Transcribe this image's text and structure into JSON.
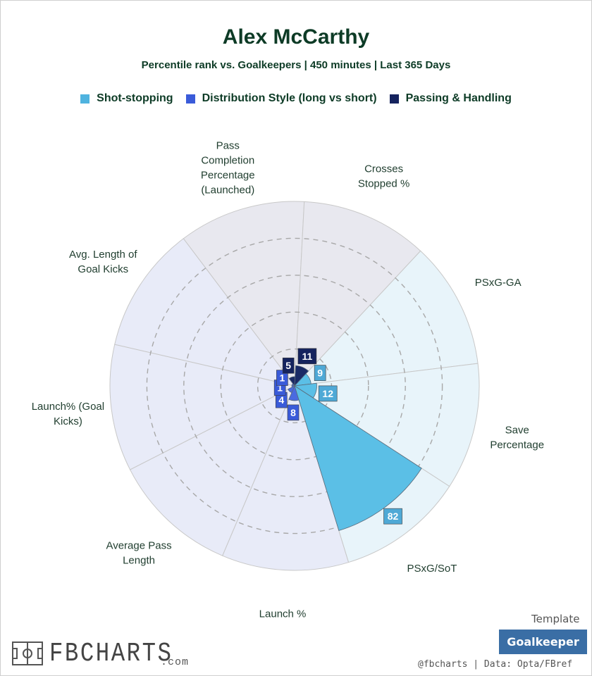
{
  "header": {
    "title": "Alex McCarthy",
    "subtitle": "Percentile rank vs. Goalkeepers | 450 minutes | Last 365 Days"
  },
  "legend": [
    {
      "label": "Shot-stopping",
      "color": "#4fb3df"
    },
    {
      "label": "Distribution Style (long vs short)",
      "color": "#3a5bd9"
    },
    {
      "label": "Passing & Handling",
      "color": "#15235e"
    }
  ],
  "chart_data": {
    "type": "polar-bar",
    "title": "Alex McCarthy",
    "subtitle": "Percentile rank vs. Goalkeepers | 450 minutes | Last 365 Days",
    "scale": [
      0,
      100
    ],
    "grid": true,
    "legend_position": "top",
    "categories": [
      {
        "label": "Launch %",
        "value": 8,
        "group": "Distribution Style (long vs short)"
      },
      {
        "label": "Average Pass Length",
        "value": 4,
        "group": "Distribution Style (long vs short)"
      },
      {
        "label": "Launch% (Goal Kicks)",
        "value": 1,
        "group": "Distribution Style (long vs short)"
      },
      {
        "label": "Avg. Length of Goal Kicks",
        "value": 1,
        "group": "Distribution Style (long vs short)"
      },
      {
        "label": "Pass Completion Percentage (Launched)",
        "value": 5,
        "group": "Passing & Handling"
      },
      {
        "label": "Crosses Stopped %",
        "value": 11,
        "group": "Passing & Handling"
      },
      {
        "label": "PSxG-GA",
        "value": 9,
        "group": "Shot-stopping"
      },
      {
        "label": "Save Percentage",
        "value": 12,
        "group": "Shot-stopping"
      },
      {
        "label": "PSxG/SoT",
        "value": 82,
        "group": "Shot-stopping"
      }
    ],
    "group_colors": {
      "Shot-stopping": {
        "bar": "#5bbfe6",
        "bg": "#e8f4fa",
        "label": "#4fa9d6"
      },
      "Distribution Style (long vs short)": {
        "bar": "#4a6ae0",
        "bg": "#e8ebf8",
        "label": "#3a5bd9"
      },
      "Passing & Handling": {
        "bar": "#1a2a66",
        "bg": "#e8e8ef",
        "label": "#15235e"
      }
    }
  },
  "footer": {
    "logo_text": "FBCHARTS",
    "logo_suffix": ".com",
    "template_label": "Template",
    "template_value": "Goalkeeper",
    "credit": "@fbcharts | Data: Opta/FBref"
  }
}
